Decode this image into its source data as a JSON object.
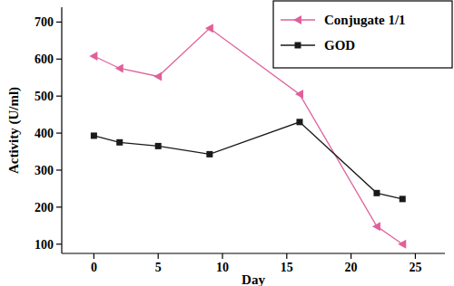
{
  "chart_data": {
    "type": "line",
    "x_label": "Day",
    "y_label": "Activity (U/ml)",
    "series": [
      {
        "name": "Conjugate 1/1",
        "color": "#e0609a",
        "marker": "triangle-left",
        "x": [
          0,
          2,
          5,
          9,
          16,
          22,
          24
        ],
        "values": [
          608,
          575,
          553,
          683,
          505,
          148,
          100
        ]
      },
      {
        "name": "GOD",
        "color": "#1a1a1a",
        "marker": "square",
        "x": [
          0,
          2,
          5,
          9,
          16,
          22,
          24
        ],
        "values": [
          393,
          375,
          365,
          343,
          430,
          238,
          222
        ]
      }
    ],
    "xlim": [
      -2.5,
      27.3
    ],
    "xticks": [
      0,
      5,
      10,
      15,
      20,
      25
    ],
    "ylim": [
      75,
      740
    ],
    "yticks": [
      100,
      200,
      300,
      400,
      500,
      600,
      700
    ],
    "legend": "upper right",
    "grid": false
  }
}
